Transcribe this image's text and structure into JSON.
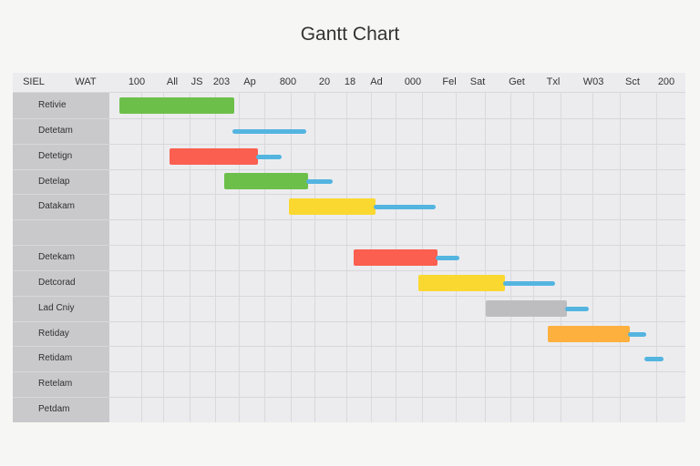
{
  "chart_data": {
    "type": "gantt",
    "title": "Gantt Chart",
    "columns": [
      "SIEL",
      "WAT",
      "100",
      "All",
      "JS",
      "203",
      "Ap",
      "800",
      "20",
      "18",
      "Ad",
      "000",
      "Fel",
      "Sat",
      "Get",
      "Txl",
      "W03",
      "Sct",
      "200"
    ],
    "rows": [
      {
        "label": "Retivie",
        "start": 0.1,
        "end": 4.9,
        "tail_end": null,
        "color": "#6cc04a"
      },
      {
        "label": "Detetam",
        "start": null,
        "end": null,
        "tail_start": 4.9,
        "tail_end": 7.9,
        "color": "#54b4e0"
      },
      {
        "label": "Detetign",
        "start": 2.2,
        "end": 5.9,
        "tail_end": 6.9,
        "color": "#fa5f4f"
      },
      {
        "label": "Detelap",
        "start": 4.5,
        "end": 8.0,
        "tail_end": 9.0,
        "color": "#6cc04a"
      },
      {
        "label": "Datakam",
        "start": 7.2,
        "end": 10.8,
        "tail_end": 13.3,
        "color": "#fbd830"
      },
      {
        "label": "",
        "start": null,
        "end": null,
        "tail_end": null,
        "color": null
      },
      {
        "label": "Detekam",
        "start": 9.9,
        "end": 13.4,
        "tail_end": 14.3,
        "color": "#fa5f4f"
      },
      {
        "label": "Detcorad",
        "start": 12.6,
        "end": 16.2,
        "tail_end": 18.3,
        "color": "#fbd830"
      },
      {
        "label": "Lad Cniy",
        "start": 15.4,
        "end": 18.8,
        "tail_end": 19.7,
        "color": "#bdbdc0"
      },
      {
        "label": "Retiday",
        "start": 18.0,
        "end": 21.4,
        "tail_end": 22.1,
        "color": "#fdb03e"
      },
      {
        "label": "Retidam",
        "start": null,
        "end": null,
        "tail_start": 22.1,
        "tail_end": 22.8,
        "color": "#54b4e0"
      },
      {
        "label": "Retelam",
        "start": null,
        "end": null,
        "tail_end": null,
        "color": null
      },
      {
        "label": "Petdam",
        "start": null,
        "end": null,
        "tail_end": null,
        "color": null
      }
    ],
    "tail_color": "#54b4e0",
    "grid": true
  }
}
